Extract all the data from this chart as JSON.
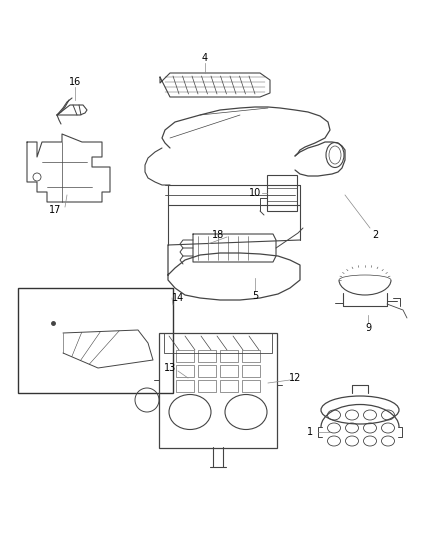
{
  "background_color": "#ffffff",
  "line_color": "#444444",
  "label_color": "#000000",
  "figsize": [
    4.38,
    5.33
  ],
  "dpi": 100
}
